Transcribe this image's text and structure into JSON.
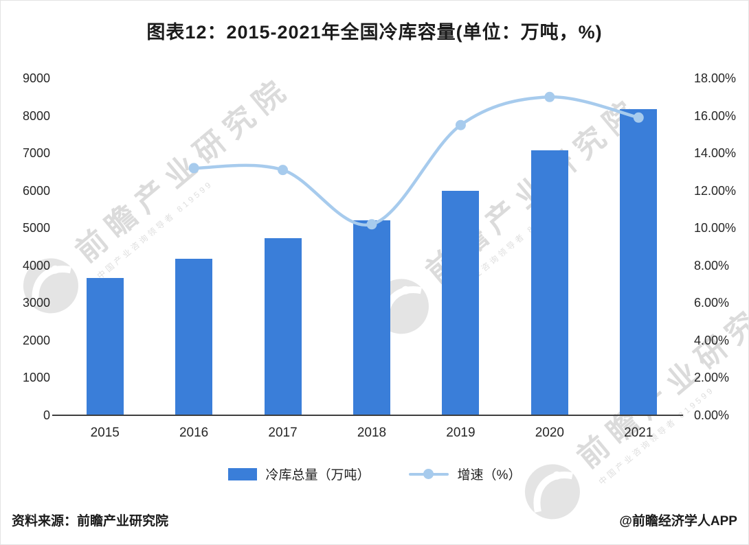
{
  "title": "图表12：2015-2021年全国冷库容量(单位：万吨，%)",
  "chart_data": {
    "type": "bar+line",
    "categories": [
      "2015",
      "2016",
      "2017",
      "2018",
      "2019",
      "2020",
      "2021"
    ],
    "series": [
      {
        "name": "冷库总量（万吨）",
        "type": "bar",
        "axis": "left",
        "values": [
          3670,
          4180,
          4730,
          5200,
          6000,
          7080,
          8170
        ]
      },
      {
        "name": "增速（%）",
        "type": "line",
        "axis": "right",
        "values": [
          null,
          13.2,
          13.1,
          10.2,
          15.5,
          17.0,
          15.9
        ]
      }
    ],
    "left_axis": {
      "min": 0,
      "max": 9000,
      "step": 1000,
      "tick_labels": [
        "9000",
        "8000",
        "7000",
        "6000",
        "5000",
        "4000",
        "3000",
        "2000",
        "1000",
        "0"
      ]
    },
    "right_axis": {
      "min": 0,
      "max": 18,
      "step": 2,
      "tick_labels": [
        "18.00%",
        "16.00%",
        "14.00%",
        "12.00%",
        "10.00%",
        "8.00%",
        "6.00%",
        "4.00%",
        "2.00%",
        "0.00%"
      ]
    },
    "grid": false,
    "legend_position": "bottom"
  },
  "legend": {
    "bar_label": "冷库总量（万吨）",
    "line_label": "增速（%）"
  },
  "colors": {
    "bar": "#3a7ed9",
    "line": "#a7cbed",
    "title_text": "#1b1b1b",
    "axis_text": "#262626"
  },
  "watermark": {
    "text": "前瞻产业研究院",
    "subtext": "中国产业咨询领导者 819599"
  },
  "footer": {
    "source": "资料来源：前瞻产业研究院",
    "credit": "@前瞻经济学人APP"
  }
}
